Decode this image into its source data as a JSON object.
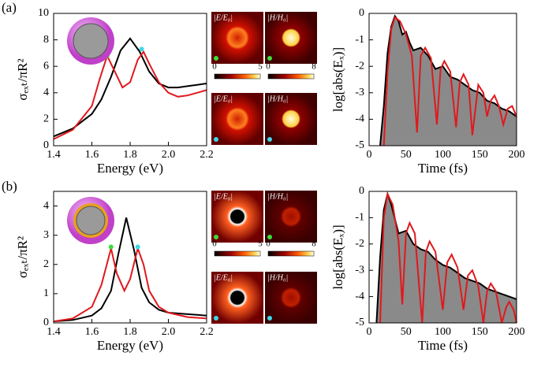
{
  "panel_labels": [
    "(a)",
    "(b)"
  ],
  "chart_data": [
    {
      "type": "line",
      "xlabel": "Energy (eV)",
      "ylabel": "σₑₓₜ/πR²",
      "xlim": [
        1.4,
        2.2
      ],
      "xticks": [
        1.4,
        1.6,
        1.8,
        {
          "value": 2,
          "label": "2.0"
        },
        2.2
      ],
      "ylim": [
        0,
        10
      ],
      "yticks": [
        0,
        2,
        4,
        6,
        8,
        10
      ],
      "series": [
        {
          "color": "#000000",
          "x": [
            1.4,
            1.5,
            1.6,
            1.65,
            1.7,
            1.75,
            1.8,
            1.85,
            1.9,
            1.95,
            2.0,
            2.05,
            2.1,
            2.15,
            2.2
          ],
          "values": [
            0.7,
            1.3,
            2.4,
            3.5,
            5.2,
            7.2,
            8.1,
            7.1,
            5.6,
            4.7,
            4.4,
            4.4,
            4.5,
            4.6,
            4.7
          ]
        },
        {
          "color": "#e0191d",
          "x": [
            1.4,
            1.5,
            1.6,
            1.64,
            1.68,
            1.72,
            1.76,
            1.8,
            1.84,
            1.87,
            1.9,
            1.95,
            2.0,
            2.05,
            2.1,
            2.15,
            2.2
          ],
          "values": [
            0.5,
            1.2,
            3.0,
            5.0,
            6.8,
            5.6,
            4.4,
            4.8,
            6.5,
            7.1,
            6.2,
            4.8,
            4.0,
            3.7,
            3.8,
            4.0,
            4.2
          ]
        }
      ],
      "markers": [
        {
          "x": 1.68,
          "y": 6.8,
          "color": "#3ddc3d"
        },
        {
          "x": 1.86,
          "y": 7.3,
          "color": "#3fd7e8"
        }
      ]
    },
    {
      "type": "line",
      "xlabel": "Time (fs)",
      "ylabel": "log[abs(Eₓ)]",
      "xlim": [
        0,
        200
      ],
      "xticks": [
        0,
        50,
        100,
        150,
        200
      ],
      "ylim": [
        -5,
        0
      ],
      "yticks": [
        -5,
        -4,
        -3,
        -2,
        -1,
        0
      ],
      "series": [
        {
          "color": "#000000",
          "fill": "#8a8a8a",
          "x": [
            15,
            20,
            25,
            30,
            35,
            40,
            45,
            50,
            55,
            60,
            70,
            80,
            90,
            100,
            110,
            120,
            130,
            140,
            150,
            160,
            170,
            180,
            190,
            200
          ],
          "values": [
            -5,
            -3.5,
            -1.5,
            -0.5,
            -0.1,
            -0.3,
            -0.8,
            -0.7,
            -1.1,
            -1.4,
            -1.3,
            -1.6,
            -2.1,
            -2.0,
            -2.4,
            -2.5,
            -2.7,
            -2.9,
            -3.0,
            -3.3,
            -3.4,
            -3.6,
            -3.7,
            -3.9
          ]
        },
        {
          "color": "#e0191d",
          "x": [
            20,
            25,
            30,
            35,
            42,
            50,
            58,
            65,
            70,
            76,
            84,
            92,
            97,
            102,
            110,
            118,
            123,
            128,
            135,
            140,
            148,
            155,
            160,
            165,
            170,
            176,
            182,
            188,
            194,
            200
          ],
          "values": [
            -5,
            -2.2,
            -0.6,
            -0.15,
            -0.3,
            -0.8,
            -1.6,
            -4.5,
            -1.6,
            -1.3,
            -1.7,
            -4.2,
            -2.1,
            -1.8,
            -2.2,
            -4.3,
            -2.6,
            -2.3,
            -2.7,
            -4.6,
            -2.7,
            -3.0,
            -3.9,
            -3.3,
            -3.1,
            -3.5,
            -4.2,
            -3.6,
            -3.5,
            -3.9
          ]
        }
      ]
    },
    {
      "type": "line",
      "xlabel": "Energy (eV)",
      "ylabel": "σₑₓₜ/πR²",
      "xlim": [
        1.4,
        2.2
      ],
      "xticks": [
        1.4,
        1.6,
        1.8,
        {
          "value": 2,
          "label": "2.0"
        },
        2.2
      ],
      "ylim": [
        0,
        4.5
      ],
      "yticks": [
        0,
        1,
        2,
        3,
        4
      ],
      "series": [
        {
          "color": "#000000",
          "x": [
            1.4,
            1.5,
            1.6,
            1.65,
            1.7,
            1.74,
            1.78,
            1.82,
            1.86,
            1.9,
            1.95,
            2.0,
            2.1,
            2.2
          ],
          "values": [
            0.05,
            0.1,
            0.25,
            0.5,
            1.1,
            2.4,
            3.6,
            2.5,
            1.2,
            0.7,
            0.45,
            0.35,
            0.3,
            0.25
          ]
        },
        {
          "color": "#e0191d",
          "x": [
            1.4,
            1.5,
            1.6,
            1.65,
            1.7,
            1.73,
            1.77,
            1.8,
            1.84,
            1.87,
            1.9,
            1.95,
            2.0,
            2.1,
            2.2
          ],
          "values": [
            0.05,
            0.15,
            0.55,
            1.3,
            2.55,
            1.7,
            1.1,
            1.5,
            2.55,
            2.0,
            1.1,
            0.55,
            0.35,
            0.2,
            0.15
          ]
        }
      ],
      "markers": [
        {
          "x": 1.7,
          "y": 2.6,
          "color": "#3ddc3d"
        },
        {
          "x": 1.84,
          "y": 2.6,
          "color": "#3fd7e8"
        }
      ]
    },
    {
      "type": "line",
      "xlabel": "Time (fs)",
      "ylabel": "log[abs(Eₓ)]",
      "xlim": [
        0,
        200
      ],
      "xticks": [
        0,
        50,
        100,
        150,
        200
      ],
      "ylim": [
        -5,
        0
      ],
      "yticks": [
        -5,
        -4,
        -3,
        -2,
        -1,
        0
      ],
      "series": [
        {
          "color": "#000000",
          "fill": "#8a8a8a",
          "x": [
            10,
            15,
            20,
            25,
            30,
            40,
            50,
            60,
            70,
            80,
            90,
            100,
            110,
            120,
            130,
            140,
            150,
            160,
            170,
            180,
            190,
            200
          ],
          "values": [
            -5,
            -2.5,
            -0.7,
            -0.1,
            -0.5,
            -1.6,
            -1.5,
            -2.0,
            -2.2,
            -2.3,
            -2.6,
            -2.8,
            -2.9,
            -3.1,
            -3.3,
            -3.4,
            -3.5,
            -3.7,
            -3.8,
            -3.9,
            -4.0,
            -4.1
          ]
        },
        {
          "color": "#e0191d",
          "x": [
            15,
            20,
            25,
            32,
            40,
            45,
            50,
            55,
            62,
            72,
            77,
            82,
            90,
            100,
            106,
            112,
            120,
            128,
            134,
            140,
            148,
            155,
            160,
            165,
            172,
            180,
            186,
            190,
            196,
            200
          ],
          "values": [
            -5,
            -1.0,
            -0.1,
            -0.5,
            -1.9,
            -4.3,
            -1.6,
            -1.2,
            -1.6,
            -5,
            -2.3,
            -1.9,
            -2.3,
            -4.5,
            -2.7,
            -2.4,
            -2.9,
            -4.5,
            -3.2,
            -3.0,
            -3.6,
            -5,
            -3.8,
            -3.5,
            -3.8,
            -5,
            -4.4,
            -4.2,
            -4.5,
            -5
          ]
        }
      ]
    }
  ],
  "field_maps": [
    {
      "labels": [
        "|E/E₀|",
        "|H/H₀|",
        "|E/E₀|",
        "|H/H₀|"
      ],
      "colorbar_ticks": [
        [
          "0",
          "5"
        ],
        [
          "0",
          "8"
        ]
      ]
    },
    {
      "labels": [
        "|E/E₀|",
        "|H/H₀|",
        "|E/E₀|",
        "|H/H₀|"
      ],
      "colorbar_ticks": [
        [
          "0",
          "5"
        ],
        [
          "0",
          "8"
        ]
      ]
    }
  ]
}
